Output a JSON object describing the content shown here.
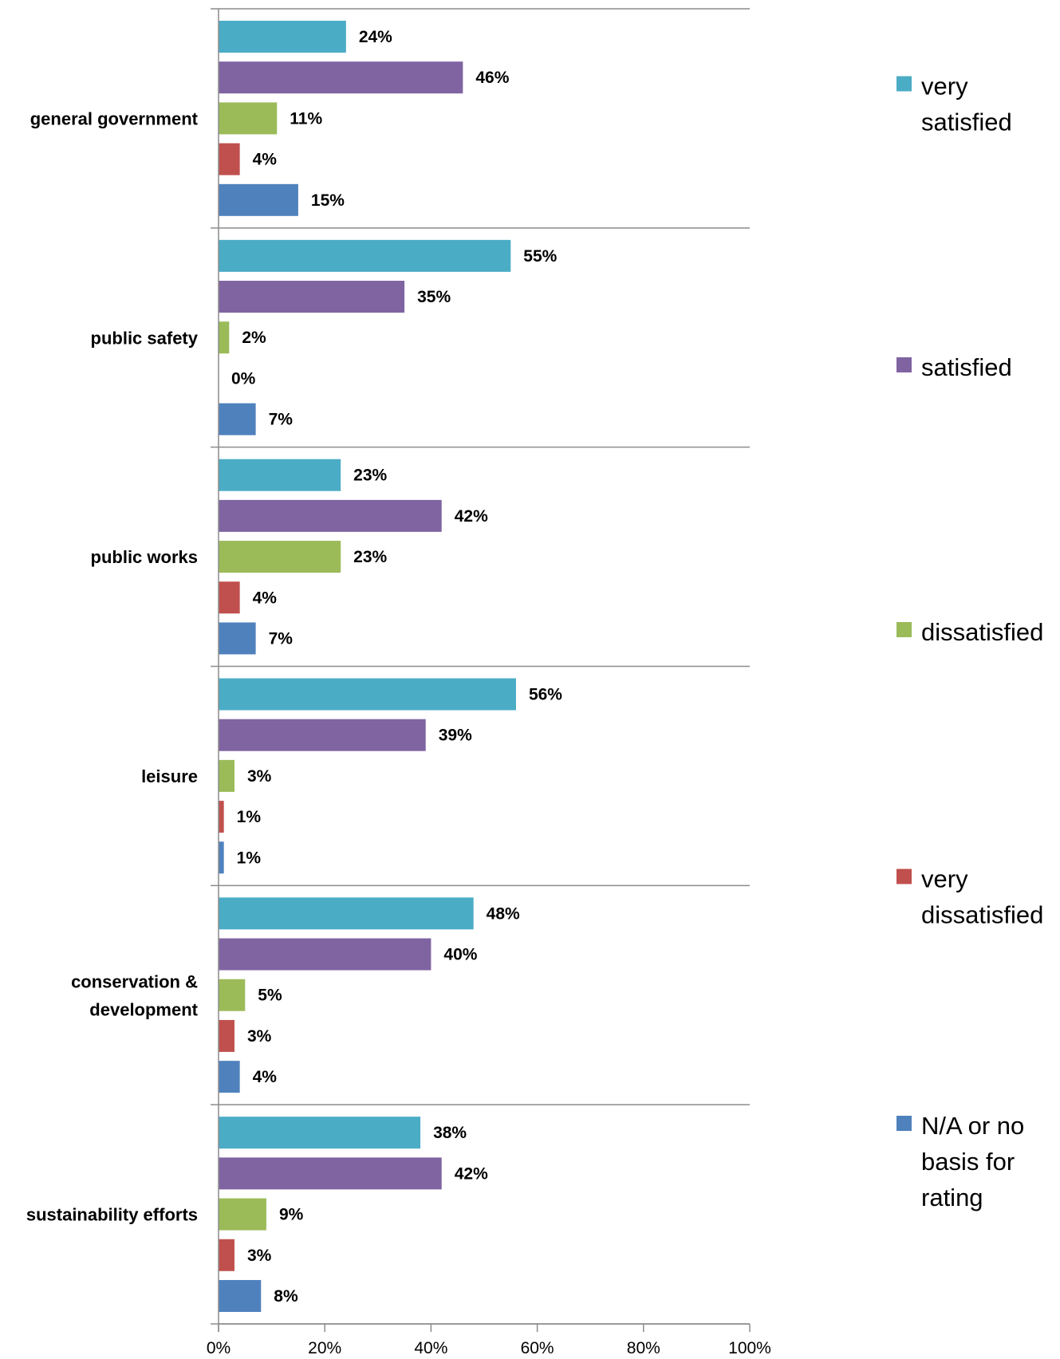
{
  "chart_data": {
    "type": "bar",
    "orientation": "horizontal",
    "categories": [
      "general government",
      "public safety",
      "public works",
      "leisure",
      "conservation & development",
      "sustainability efforts"
    ],
    "category_display_lines": [
      [
        "general government"
      ],
      [
        "public safety"
      ],
      [
        "public works"
      ],
      [
        "leisure"
      ],
      [
        "conservation &",
        "development"
      ],
      [
        "sustainability efforts"
      ]
    ],
    "series": [
      {
        "name": "very satisfied",
        "legend_lines": [
          "very",
          "satisfied"
        ],
        "color": "#4BACC6",
        "values": [
          24,
          55,
          23,
          56,
          48,
          38
        ]
      },
      {
        "name": "satisfied",
        "legend_lines": [
          "satisfied"
        ],
        "color": "#8064A2",
        "values": [
          46,
          35,
          42,
          39,
          40,
          42
        ]
      },
      {
        "name": "dissatisfied",
        "legend_lines": [
          "dissatisfied"
        ],
        "color": "#9BBB59",
        "values": [
          11,
          2,
          23,
          3,
          5,
          9
        ]
      },
      {
        "name": "very dissatisfied",
        "legend_lines": [
          "very",
          "dissatisfied"
        ],
        "color": "#C0504D",
        "values": [
          4,
          0,
          4,
          1,
          3,
          3
        ]
      },
      {
        "name": "N/A or no basis for rating",
        "legend_lines": [
          "N/A or no",
          "basis for",
          "rating"
        ],
        "color": "#4F81BD",
        "values": [
          15,
          7,
          7,
          1,
          4,
          8
        ]
      }
    ],
    "value_suffix": "%",
    "xlim": [
      0,
      100
    ],
    "x_ticks": [
      0,
      20,
      40,
      60,
      80,
      100
    ],
    "x_tick_labels": [
      "0%",
      "20%",
      "40%",
      "60%",
      "80%",
      "100%"
    ],
    "title": "",
    "xlabel": "",
    "ylabel": "",
    "grid": false,
    "legend_position": "right"
  }
}
